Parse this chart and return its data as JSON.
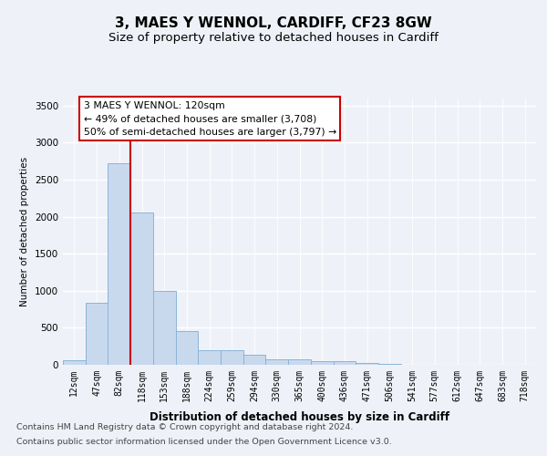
{
  "title1": "3, MAES Y WENNOL, CARDIFF, CF23 8GW",
  "title2": "Size of property relative to detached houses in Cardiff",
  "xlabel": "Distribution of detached houses by size in Cardiff",
  "ylabel": "Number of detached properties",
  "categories": [
    "12sqm",
    "47sqm",
    "82sqm",
    "118sqm",
    "153sqm",
    "188sqm",
    "224sqm",
    "259sqm",
    "294sqm",
    "330sqm",
    "365sqm",
    "400sqm",
    "436sqm",
    "471sqm",
    "506sqm",
    "541sqm",
    "577sqm",
    "612sqm",
    "647sqm",
    "683sqm",
    "718sqm"
  ],
  "values": [
    60,
    840,
    2720,
    2060,
    1000,
    450,
    200,
    200,
    130,
    80,
    70,
    50,
    55,
    30,
    8,
    0,
    0,
    0,
    0,
    0,
    0
  ],
  "bar_color": "#c8d9ee",
  "bar_edge_color": "#8ab4d9",
  "vline_x_idx": 2.5,
  "vline_color": "#cc0000",
  "annotation_text": "3 MAES Y WENNOL: 120sqm\n← 49% of detached houses are smaller (3,708)\n50% of semi-detached houses are larger (3,797) →",
  "annotation_box_edgecolor": "#cc0000",
  "ylim": [
    0,
    3600
  ],
  "yticks": [
    0,
    500,
    1000,
    1500,
    2000,
    2500,
    3000,
    3500
  ],
  "bg_color": "#eef2f8",
  "plot_bg_color": "#eef2f8",
  "grid_color": "#ffffff",
  "title1_fontsize": 11,
  "title2_fontsize": 9.5,
  "ylabel_fontsize": 7.5,
  "xlabel_fontsize": 8.5,
  "tick_fontsize": 7,
  "annotation_fontsize": 7.8,
  "footer_fontsize": 6.8,
  "footer_line1": "Contains HM Land Registry data © Crown copyright and database right 2024.",
  "footer_line2": "Contains public sector information licensed under the Open Government Licence v3.0."
}
